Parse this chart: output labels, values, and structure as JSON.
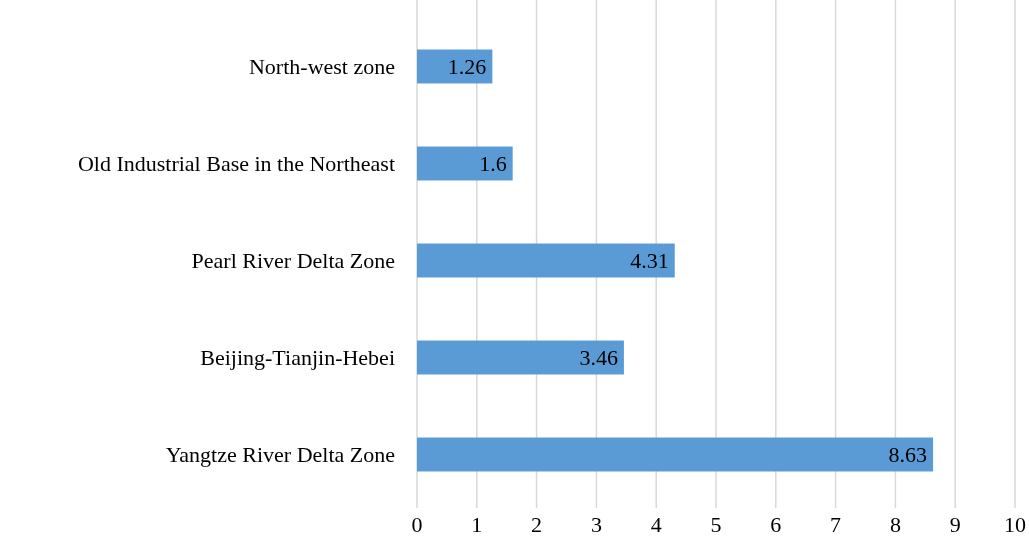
{
  "chart_data": {
    "type": "bar",
    "orientation": "horizontal",
    "categories": [
      "North-west zone",
      "Old Industrial Base in the Northeast",
      "Pearl River Delta Zone",
      "Beijing-Tianjin-Hebei",
      "Yangtze River Delta Zone"
    ],
    "values": [
      1.26,
      1.6,
      4.31,
      3.46,
      8.63
    ],
    "color": "#5b9bd5",
    "xlim": [
      0,
      10
    ],
    "xticks": [
      0,
      1,
      2,
      3,
      4,
      5,
      6,
      7,
      8,
      9,
      10
    ],
    "grid": "x",
    "data_labels": true
  }
}
